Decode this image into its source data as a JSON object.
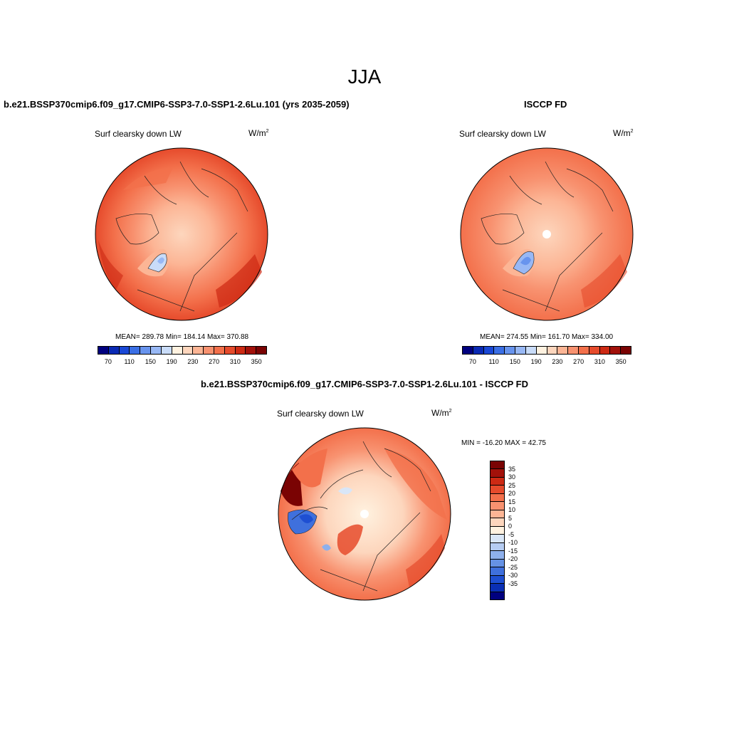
{
  "season": "JJA",
  "colors": {
    "abs_scale": [
      "#00007f",
      "#0a2ab4",
      "#1a48d6",
      "#3b6fe5",
      "#6894ee",
      "#98b8f5",
      "#c9dcf9",
      "#fff2e0",
      "#fdd6bd",
      "#fcb595",
      "#f89270",
      "#f3704b",
      "#e64b2c",
      "#cd2a14",
      "#a2110a",
      "#7a0303"
    ],
    "diff_scale": [
      "#7a0303",
      "#a2110a",
      "#cd2a14",
      "#e64b2c",
      "#f3704b",
      "#f89270",
      "#fcb595",
      "#fdd6bd",
      "#fff2e0",
      "#d9e6f7",
      "#b5ccf2",
      "#8eb0ec",
      "#6692e5",
      "#3f70dd",
      "#1e4fd2",
      "#0a2fb4",
      "#00007f"
    ]
  },
  "panels": {
    "model": {
      "title": "b.e21.BSSP370cmip6.f09_g17.CMIP6-SSP3-7.0-SSP1-2.6Lu.101 (yrs 2035-2059)",
      "variable": "Surf clearsky down LW",
      "units": "W/m",
      "units_exp": "2",
      "stats": "MEAN= 289.78  Min= 184.14  Max= 370.88",
      "colorbar_ticks": [
        "70",
        "110",
        "150",
        "190",
        "230",
        "270",
        "310",
        "350"
      ]
    },
    "obs": {
      "title": "ISCCP FD",
      "variable": "Surf clearsky down LW",
      "units": "W/m",
      "units_exp": "2",
      "stats": "MEAN= 274.55  Min= 161.70  Max= 334.00",
      "colorbar_ticks": [
        "70",
        "110",
        "150",
        "190",
        "230",
        "270",
        "310",
        "350"
      ]
    },
    "diff": {
      "title": "b.e21.BSSP370cmip6.f09_g17.CMIP6-SSP3-7.0-SSP1-2.6Lu.101 - ISCCP FD",
      "variable": "Surf clearsky down LW",
      "units": "W/m",
      "units_exp": "2",
      "stats": "MIN = -16.20 MAX =  42.75",
      "colorbar_ticks": [
        "35",
        "30",
        "25",
        "20",
        "15",
        "10",
        "5",
        "0",
        "-5",
        "-10",
        "-15",
        "-20",
        "-25",
        "-30",
        "-35"
      ]
    }
  }
}
